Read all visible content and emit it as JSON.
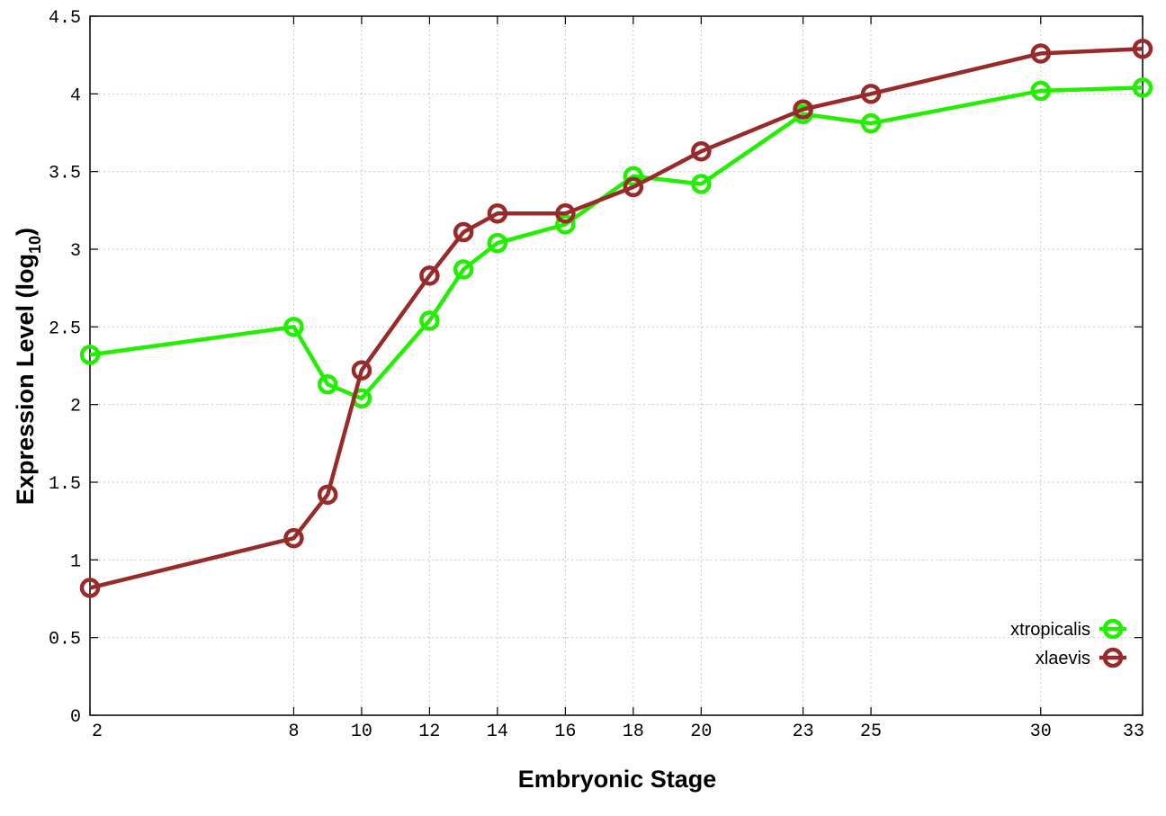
{
  "chart_data": {
    "type": "line",
    "xlabel": "Embryonic Stage",
    "ylabel": "Expression Level (log",
    "ylabel_sub": "10",
    "ylabel_close": ")",
    "x_ticks": [
      "2",
      "8",
      "10",
      "12",
      "14",
      "16",
      "18",
      "20",
      "23",
      "25",
      "30",
      "33"
    ],
    "y_ticks": [
      "0",
      "0.5",
      "1",
      "1.5",
      "2",
      "2.5",
      "3",
      "3.5",
      "4",
      "4.5"
    ],
    "xlim": [
      2,
      33
    ],
    "ylim": [
      0,
      4.5
    ],
    "grid": true,
    "legend_position": "bottom-right",
    "series": [
      {
        "name": "xtropicalis",
        "color": "#22ee00",
        "points": [
          [
            2,
            2.32
          ],
          [
            8,
            2.5
          ],
          [
            9,
            2.13
          ],
          [
            10,
            2.04
          ],
          [
            12,
            2.54
          ],
          [
            13,
            2.87
          ],
          [
            14,
            3.04
          ],
          [
            16,
            3.16
          ],
          [
            18,
            3.47
          ],
          [
            20,
            3.42
          ],
          [
            23,
            3.87
          ],
          [
            25,
            3.81
          ],
          [
            30,
            4.02
          ],
          [
            33,
            4.04
          ]
        ]
      },
      {
        "name": "xlaevis",
        "color": "#992a2a",
        "points": [
          [
            2,
            0.82
          ],
          [
            8,
            1.14
          ],
          [
            9,
            1.42
          ],
          [
            10,
            2.22
          ],
          [
            12,
            2.83
          ],
          [
            13,
            3.11
          ],
          [
            14,
            3.23
          ],
          [
            16,
            3.23
          ],
          [
            18,
            3.4
          ],
          [
            20,
            3.63
          ],
          [
            23,
            3.9
          ],
          [
            25,
            4.0
          ],
          [
            30,
            4.26
          ],
          [
            33,
            4.29
          ]
        ]
      }
    ]
  }
}
